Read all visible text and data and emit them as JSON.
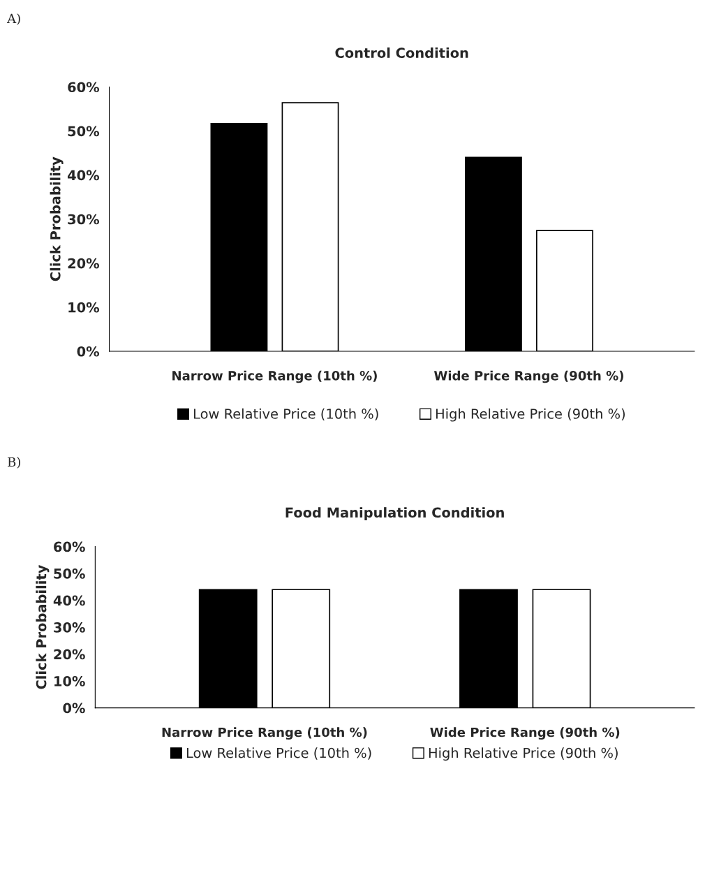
{
  "chart_data": [
    {
      "type": "bar",
      "title": "Control Condition",
      "ylabel": "Click Probability",
      "annotations": [
        "A)"
      ],
      "categories": [
        "Narrow Price Range (10th %)",
        "Wide Price Range (90th %)"
      ],
      "series": [
        {
          "name": "Low Relative Price (10th %)",
          "color": "#000000",
          "values": [
            51.7,
            44.0
          ]
        },
        {
          "name": "High Relative Price (90th %)",
          "color": "#ffffff",
          "values": [
            56.4,
            27.4
          ]
        }
      ],
      "ylim": [
        0,
        60
      ],
      "yticks": [
        {
          "value": 0,
          "label": "0%"
        },
        {
          "value": 10,
          "label": "10%"
        },
        {
          "value": 20,
          "label": "20%"
        },
        {
          "value": 30,
          "label": "30%"
        },
        {
          "value": 40,
          "label": "40%"
        },
        {
          "value": 50,
          "label": "50%"
        },
        {
          "value": 60,
          "label": "60%"
        }
      ],
      "grid": false,
      "legend": "bottom"
    },
    {
      "type": "bar",
      "title": "Food Manipulation Condition",
      "ylabel": "Click Probability",
      "annotations": [
        "B)"
      ],
      "categories": [
        "Narrow Price Range (10th %)",
        "Wide Price Range (90th %)"
      ],
      "series": [
        {
          "name": "Low Relative Price (10th %)",
          "color": "#000000",
          "values": [
            44.0,
            44.0
          ]
        },
        {
          "name": "High Relative Price (90th %)",
          "color": "#ffffff",
          "values": [
            44.0,
            44.0
          ]
        }
      ],
      "ylim": [
        0,
        60
      ],
      "yticks": [
        {
          "value": 0,
          "label": "0%"
        },
        {
          "value": 10,
          "label": "10%"
        },
        {
          "value": 20,
          "label": "20%"
        },
        {
          "value": 30,
          "label": "30%"
        },
        {
          "value": 40,
          "label": "40%"
        },
        {
          "value": 50,
          "label": "50%"
        },
        {
          "value": 60,
          "label": "60%"
        }
      ],
      "grid": false,
      "legend": "bottom"
    }
  ]
}
